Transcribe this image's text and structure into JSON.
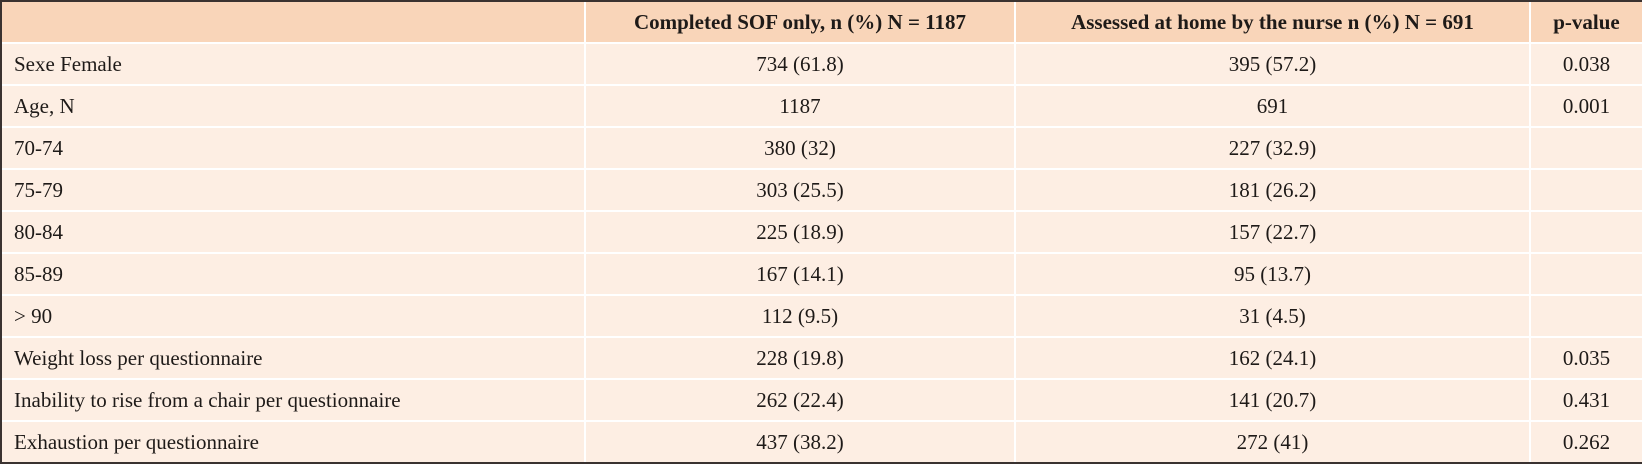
{
  "table": {
    "header": [
      "Completed SOF only, n (%) N = 1187",
      "Assessed at home by the nurse n (%) N = 691",
      "p-value"
    ],
    "rows": [
      [
        "Sexe Female",
        "734 (61.8)",
        "395 (57.2)",
        "0.038"
      ],
      [
        "Age, N",
        "1187",
        "691",
        "0.001"
      ],
      [
        "70-74",
        "380 (32)",
        "227 (32.9)"
      ],
      [
        "75-79",
        "303 (25.5)",
        "181 (26.2)"
      ],
      [
        "80-84",
        "225 (18.9)",
        "157 (22.7)"
      ],
      [
        "85-89",
        "167 (14.1)",
        "95 (13.7)"
      ],
      [
        "> 90",
        "112 (9.5)",
        "31 (4.5)"
      ],
      [
        "Weight loss per questionnaire",
        "228 (19.8)",
        "162 (24.1)",
        "0.035"
      ],
      [
        "Inability to rise from a chair per questionnaire",
        "262 (22.4)",
        "141 (20.7)",
        "0.431"
      ],
      [
        "Exhaustion per questionnaire",
        "437 (38.2)",
        "272 (41)",
        "0.262"
      ]
    ]
  }
}
